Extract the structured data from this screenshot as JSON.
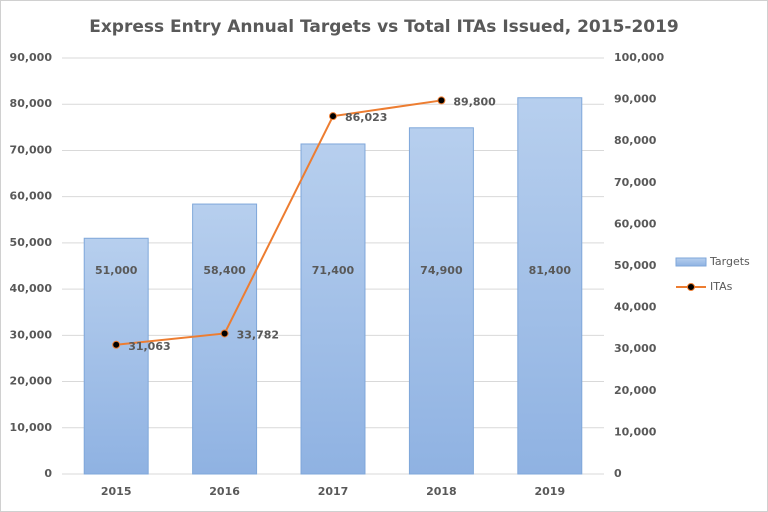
{
  "chart_data": {
    "type": "combo",
    "title": "Express Entry Annual Targets vs Total ITAs Issued, 2015-2019",
    "categories": [
      "2015",
      "2016",
      "2017",
      "2018",
      "2019"
    ],
    "series": [
      {
        "name": "Targets",
        "type": "bar",
        "color": "#a9c5ea",
        "values": [
          51000,
          58400,
          71400,
          74900,
          81400
        ],
        "value_labels": [
          "51,000",
          "58,400",
          "71,400",
          "74,900",
          "81,400"
        ]
      },
      {
        "name": "ITAs",
        "type": "line",
        "axis": "y2",
        "color": "#ed7d31",
        "values": [
          31063,
          33782,
          86023,
          89800,
          null
        ],
        "value_labels": [
          "31,063",
          "33,782",
          "86,023",
          "89,800",
          null
        ]
      }
    ],
    "ylim": [
      0,
      90000
    ],
    "yticks": [
      0,
      {
        "value": 10000,
        "label": "10,000"
      },
      {
        "value": 20000,
        "label": "20,000"
      },
      {
        "value": 30000,
        "label": "30,000"
      },
      {
        "value": 40000,
        "label": "40,000"
      },
      {
        "value": 50000,
        "label": "50,000"
      },
      {
        "value": 60000,
        "label": "60,000"
      },
      {
        "value": 70000,
        "label": "70,000"
      },
      {
        "value": 80000,
        "label": "80,000"
      },
      {
        "value": 90000,
        "label": "90,000"
      }
    ],
    "y2lim": [
      0,
      100000
    ],
    "y2ticks": [
      0,
      {
        "value": 10000,
        "label": "10,000"
      },
      {
        "value": 20000,
        "label": "20,000"
      },
      {
        "value": 30000,
        "label": "30,000"
      },
      {
        "value": 40000,
        "label": "40,000"
      },
      {
        "value": 50000,
        "label": "50,000"
      },
      {
        "value": 60000,
        "label": "60,000"
      },
      {
        "value": 70000,
        "label": "70,000"
      },
      {
        "value": 80000,
        "label": "80,000"
      },
      {
        "value": 90000,
        "label": "90,000"
      },
      {
        "value": 100000,
        "label": "100,000"
      }
    ],
    "grid": true,
    "legend": "right"
  }
}
